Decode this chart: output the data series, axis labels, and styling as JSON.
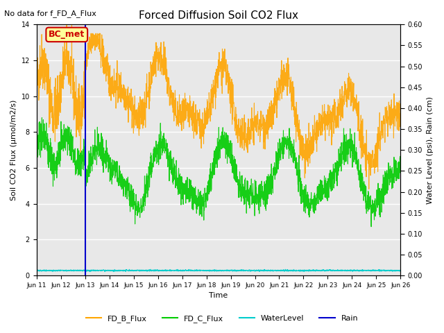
{
  "title": "Forced Diffusion Soil CO2 Flux",
  "subtitle": "No data for f_FD_A_Flux",
  "xlabel": "Time",
  "ylabel_left": "Soil CO2 Flux (μmol/m2/s)",
  "ylabel_right": "Water Level (psi), Rain (cm)",
  "ylim_left": [
    0,
    14
  ],
  "ylim_right": [
    0,
    0.6
  ],
  "yticks_left": [
    0,
    2,
    4,
    6,
    8,
    10,
    12,
    14
  ],
  "yticks_right": [
    0.0,
    0.05,
    0.1,
    0.15,
    0.2,
    0.25,
    0.3,
    0.35,
    0.4,
    0.45,
    0.5,
    0.55,
    0.6
  ],
  "xtick_positions": [
    0,
    1,
    2,
    3,
    4,
    5,
    6,
    7,
    8,
    9,
    10,
    11,
    12,
    13,
    14,
    15
  ],
  "xtick_labels": [
    "Jun 11",
    "Jun 12",
    "Jun 13",
    "Jun 14",
    "Jun 15",
    "Jun 16",
    "Jun 17",
    "Jun 18",
    "Jun 19",
    "Jun 20",
    "Jun 21",
    "Jun 22",
    "Jun 23",
    "Jun 24",
    "Jun 25",
    "Jun 26"
  ],
  "xlim": [
    0,
    15
  ],
  "color_FDB": "#FFA500",
  "color_FDC": "#00CC00",
  "color_water": "#00CCCC",
  "color_rain": "#0000CC",
  "color_bcmet_box": "#FFFF99",
  "color_bcmet_border": "#CC0000",
  "color_bcmet_text": "#CC0000",
  "vline_x": 2.0,
  "background_color": "#E8E8E8",
  "grid_color": "#FFFFFF",
  "annotation_text": "BC_met",
  "annotation_fontsize": 9
}
